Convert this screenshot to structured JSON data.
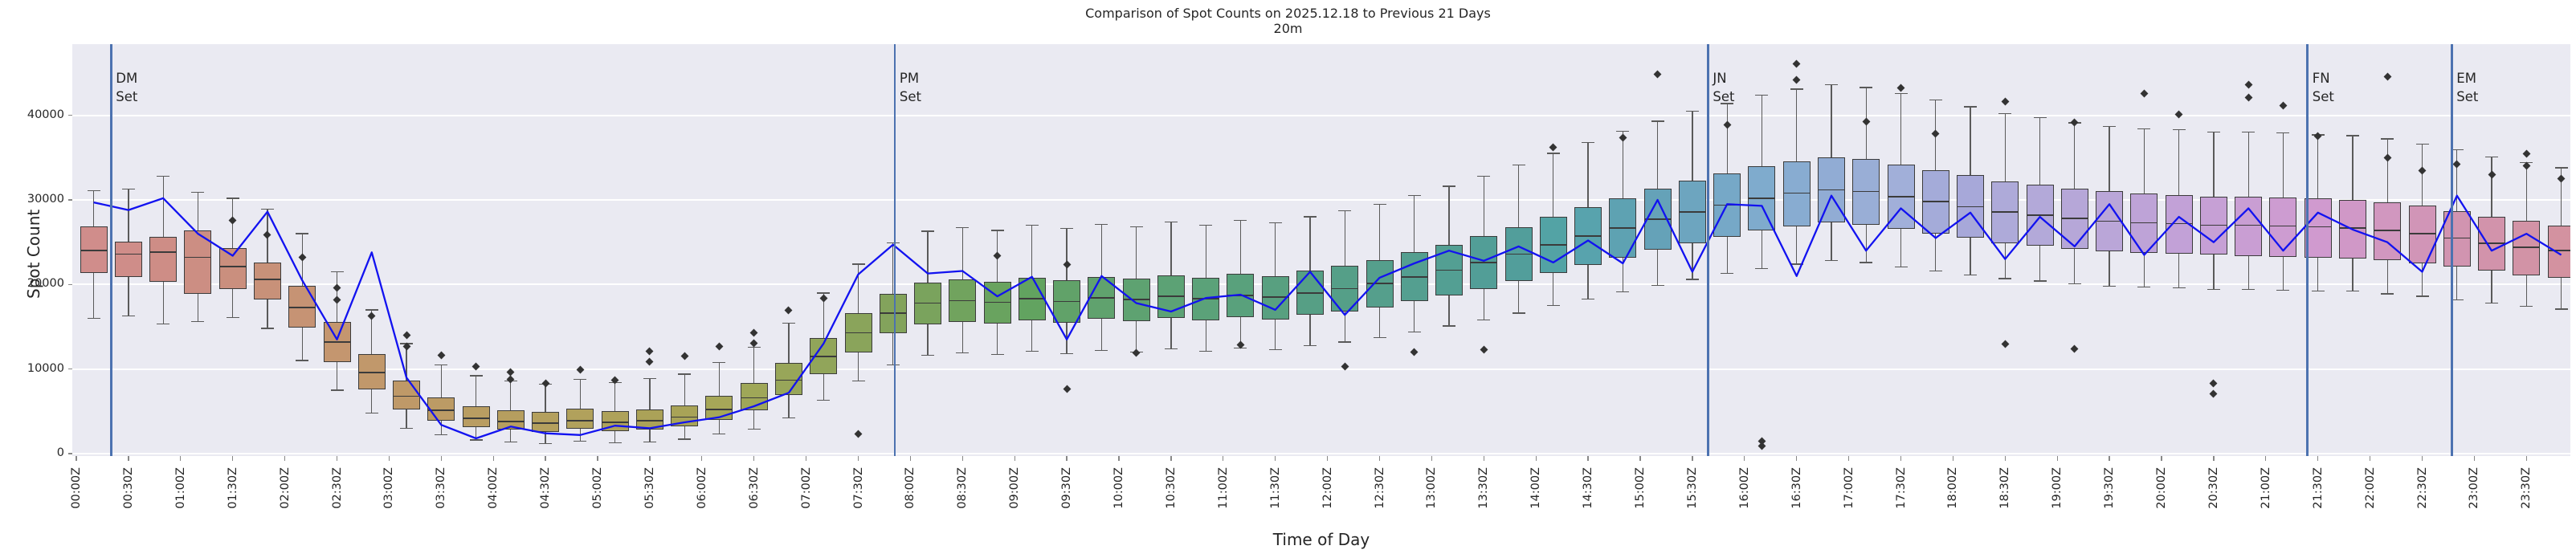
{
  "title": {
    "line1": "Comparison of Spot Counts on 2025.12.18 to Previous 21 Days",
    "line2": "20m"
  },
  "axes": {
    "x_label": "Time of Day",
    "y_label": "Spot Count",
    "x_tick_labels": [
      "00:00Z",
      "00:30Z",
      "01:00Z",
      "01:30Z",
      "02:00Z",
      "02:30Z",
      "03:00Z",
      "03:30Z",
      "04:00Z",
      "04:30Z",
      "05:00Z",
      "05:30Z",
      "06:00Z",
      "06:30Z",
      "07:00Z",
      "07:30Z",
      "08:00Z",
      "08:30Z",
      "09:00Z",
      "09:30Z",
      "10:00Z",
      "10:30Z",
      "11:00Z",
      "11:30Z",
      "12:00Z",
      "12:30Z",
      "13:00Z",
      "13:30Z",
      "14:00Z",
      "14:30Z",
      "15:00Z",
      "15:30Z",
      "16:00Z",
      "16:30Z",
      "17:00Z",
      "17:30Z",
      "18:00Z",
      "18:30Z",
      "19:00Z",
      "19:30Z",
      "20:00Z",
      "20:30Z",
      "21:00Z",
      "21:30Z",
      "22:00Z",
      "22:30Z",
      "23:00Z",
      "23:30Z"
    ],
    "y_tick_labels": [
      "0",
      "10000",
      "20000",
      "30000",
      "40000"
    ],
    "y_tick_values": [
      0,
      10000,
      20000,
      30000,
      40000
    ]
  },
  "annotations": {
    "set_suffix": "Set",
    "vlines": [
      {
        "label": "DM",
        "t_min": 20
      },
      {
        "label": "PM",
        "t_min": 471
      },
      {
        "label": "JN",
        "t_min": 939
      },
      {
        "label": "FN",
        "t_min": 1284
      },
      {
        "label": "EM",
        "t_min": 1367
      }
    ]
  },
  "colors": {
    "figure_bg": "#ffffff",
    "plot_bg": "#eaeaf2",
    "grid": "#ffffff",
    "line": "#1212f0",
    "vline": "#4c72b0",
    "box_edge": "#3b3b3b",
    "whisker": "#5a5a5a",
    "outlier": "#333333",
    "text": "#262626",
    "palette_anchors_hsl": [
      [
        0,
        2,
        42,
        68
      ],
      [
        0.04,
        8,
        42,
        66
      ],
      [
        0.1,
        28,
        42,
        60
      ],
      [
        0.16,
        42,
        38,
        55
      ],
      [
        0.24,
        56,
        32,
        50
      ],
      [
        0.32,
        85,
        28,
        50
      ],
      [
        0.4,
        130,
        26,
        51
      ],
      [
        0.5,
        160,
        30,
        48
      ],
      [
        0.58,
        178,
        32,
        47
      ],
      [
        0.63,
        195,
        36,
        55
      ],
      [
        0.68,
        207,
        45,
        66
      ],
      [
        0.73,
        224,
        42,
        74
      ],
      [
        0.78,
        248,
        38,
        76
      ],
      [
        0.84,
        275,
        40,
        74
      ],
      [
        0.9,
        300,
        36,
        71
      ],
      [
        0.95,
        330,
        40,
        70
      ],
      [
        1.0,
        347,
        42,
        70
      ]
    ]
  },
  "chart_data": {
    "type": "boxplot+line",
    "title": "Comparison of Spot Counts on 2025.12.18 to Previous 21 Days",
    "subtitle": "20m",
    "xlabel": "Time of Day",
    "ylabel": "Spot Count",
    "bin_minutes": 20,
    "n_bins": 72,
    "bin_center_minutes_start": 10,
    "ylim": [
      -285,
      48400
    ],
    "grid": "horizontal-only",
    "box_series_name": "Previous 21 Days (distribution per 20m bin)",
    "line_series_name": "Spot Counts on 2025.12.18",
    "whisker_lo": [
      16000,
      16300,
      15300,
      15600,
      16100,
      14800,
      11000,
      7500,
      4800,
      3000,
      2200,
      1600,
      1400,
      1200,
      1500,
      1300,
      1400,
      1700,
      2300,
      2900,
      4200,
      6300,
      8600,
      10500,
      11600,
      11900,
      11700,
      12100,
      11800,
      12200,
      12000,
      12400,
      12100,
      12500,
      12300,
      12800,
      13200,
      13700,
      14400,
      15100,
      15800,
      16600,
      17500,
      18300,
      19100,
      19900,
      20600,
      21300,
      21900,
      22400,
      22800,
      22600,
      22100,
      21600,
      21100,
      20700,
      20400,
      20100,
      19800,
      19700,
      19600,
      19400,
      19400,
      19300,
      19200,
      19200,
      18900,
      18600,
      18200,
      17800,
      17400,
      17100
    ],
    "q1": [
      21400,
      20900,
      20300,
      18900,
      19500,
      18200,
      14900,
      10800,
      7600,
      5200,
      3900,
      3100,
      2800,
      2600,
      2900,
      2700,
      2800,
      3200,
      4000,
      5100,
      6900,
      9400,
      12000,
      14200,
      15300,
      15600,
      15400,
      15800,
      15500,
      15900,
      15700,
      16000,
      15800,
      16100,
      15900,
      16400,
      16800,
      17300,
      18000,
      18700,
      19500,
      20400,
      21400,
      22300,
      23200,
      24100,
      24900,
      25600,
      26400,
      26900,
      27300,
      27100,
      26600,
      26000,
      25500,
      24900,
      24600,
      24200,
      23900,
      23700,
      23600,
      23500,
      23400,
      23300,
      23200,
      23100,
      22900,
      22500,
      22100,
      21600,
      21100,
      20800
    ],
    "median": [
      24000,
      23600,
      23800,
      23200,
      22100,
      20600,
      17300,
      13200,
      9600,
      6800,
      5100,
      4200,
      3800,
      3600,
      3900,
      3700,
      3900,
      4300,
      5200,
      6600,
      8700,
      11500,
      14300,
      16600,
      17800,
      18100,
      17900,
      18300,
      18000,
      18400,
      18200,
      18600,
      18300,
      18700,
      18500,
      19000,
      19500,
      20100,
      20900,
      21700,
      22600,
      23600,
      24700,
      25700,
      26700,
      27700,
      28600,
      29400,
      30200,
      30800,
      31200,
      31000,
      30400,
      29800,
      29200,
      28600,
      28200,
      27800,
      27500,
      27300,
      27200,
      27000,
      27000,
      26900,
      26800,
      26700,
      26400,
      26000,
      25500,
      24900,
      24400,
      24000
    ],
    "q3": [
      26900,
      25100,
      25600,
      26400,
      24300,
      22600,
      19800,
      15600,
      11800,
      8600,
      6600,
      5600,
      5100,
      4900,
      5300,
      5000,
      5200,
      5700,
      6800,
      8400,
      10700,
      13700,
      16600,
      18900,
      20200,
      20600,
      20300,
      20800,
      20500,
      20900,
      20700,
      21100,
      20800,
      21300,
      21000,
      21600,
      22200,
      22900,
      23800,
      24700,
      25700,
      26800,
      28000,
      29100,
      30200,
      31300,
      32300,
      33100,
      34000,
      34600,
      35000,
      34800,
      34200,
      33500,
      32900,
      32200,
      31800,
      31300,
      31000,
      30800,
      30600,
      30400,
      30400,
      30300,
      30200,
      30000,
      29700,
      29300,
      28700,
      28000,
      27500,
      27000
    ],
    "whisker_hi": [
      31100,
      31300,
      32800,
      30900,
      30200,
      28900,
      26000,
      21500,
      17000,
      13000,
      10500,
      9200,
      8600,
      8200,
      8800,
      8400,
      8900,
      9400,
      10800,
      12600,
      15400,
      19000,
      22400,
      24900,
      26300,
      26700,
      26400,
      27000,
      26600,
      27100,
      26800,
      27400,
      27000,
      27600,
      27300,
      28000,
      28700,
      29500,
      30500,
      31600,
      32800,
      34100,
      35500,
      36800,
      38100,
      39300,
      40500,
      41400,
      42400,
      43100,
      43600,
      43300,
      42600,
      41800,
      41000,
      40200,
      39700,
      39100,
      38700,
      38400,
      38300,
      38000,
      38000,
      37900,
      37700,
      37600,
      37200,
      36600,
      35900,
      35100,
      34400,
      33800
    ],
    "line_values": [
      29700,
      28800,
      30200,
      26000,
      23400,
      28600,
      20500,
      13500,
      23800,
      9000,
      3400,
      1800,
      3200,
      2400,
      2200,
      3300,
      3000,
      3700,
      4300,
      5600,
      7200,
      13000,
      21200,
      24700,
      21300,
      21600,
      18600,
      20900,
      13500,
      21000,
      17800,
      16800,
      18400,
      18800,
      17000,
      21500,
      16400,
      20800,
      22500,
      24000,
      22800,
      24500,
      22600,
      25200,
      22500,
      30000,
      21500,
      29500,
      29300,
      21000,
      30500,
      24000,
      29000,
      25500,
      28500,
      23000,
      28000,
      24500,
      29500,
      23500,
      28000,
      25000,
      29000,
      24000,
      28500,
      26500,
      25000,
      21500,
      30500,
      24000,
      26000,
      23500
    ],
    "outliers": [
      [
        4,
        27600
      ],
      [
        5,
        25900
      ],
      [
        6,
        23200
      ],
      [
        7,
        19600
      ],
      [
        7,
        18200
      ],
      [
        8,
        16300
      ],
      [
        9,
        14000
      ],
      [
        9,
        12700
      ],
      [
        10,
        11600
      ],
      [
        11,
        10300
      ],
      [
        12,
        9600
      ],
      [
        12,
        8800
      ],
      [
        13,
        8300
      ],
      [
        14,
        9900
      ],
      [
        15,
        8700
      ],
      [
        16,
        12100
      ],
      [
        16,
        10900
      ],
      [
        17,
        11500
      ],
      [
        18,
        12700
      ],
      [
        19,
        14300
      ],
      [
        19,
        13100
      ],
      [
        20,
        16900
      ],
      [
        21,
        18400
      ],
      [
        22,
        2300
      ],
      [
        26,
        23400
      ],
      [
        28,
        22400
      ],
      [
        28,
        7600
      ],
      [
        30,
        11900
      ],
      [
        33,
        12900
      ],
      [
        36,
        10300
      ],
      [
        38,
        12000
      ],
      [
        40,
        12300
      ],
      [
        42,
        36200
      ],
      [
        44,
        37400
      ],
      [
        45,
        44900
      ],
      [
        47,
        38900
      ],
      [
        48,
        1500
      ],
      [
        48,
        900
      ],
      [
        49,
        46100
      ],
      [
        49,
        44200
      ],
      [
        51,
        39300
      ],
      [
        52,
        43200
      ],
      [
        53,
        37800
      ],
      [
        55,
        41600
      ],
      [
        55,
        13000
      ],
      [
        57,
        39200
      ],
      [
        57,
        12400
      ],
      [
        59,
        42600
      ],
      [
        60,
        40100
      ],
      [
        61,
        8300
      ],
      [
        61,
        7100
      ],
      [
        62,
        43600
      ],
      [
        62,
        42100
      ],
      [
        63,
        41200
      ],
      [
        64,
        37500
      ],
      [
        66,
        44600
      ],
      [
        66,
        35000
      ],
      [
        67,
        33500
      ],
      [
        68,
        34200
      ],
      [
        69,
        33000
      ],
      [
        70,
        35500
      ],
      [
        70,
        34000
      ],
      [
        71,
        32500
      ]
    ]
  }
}
